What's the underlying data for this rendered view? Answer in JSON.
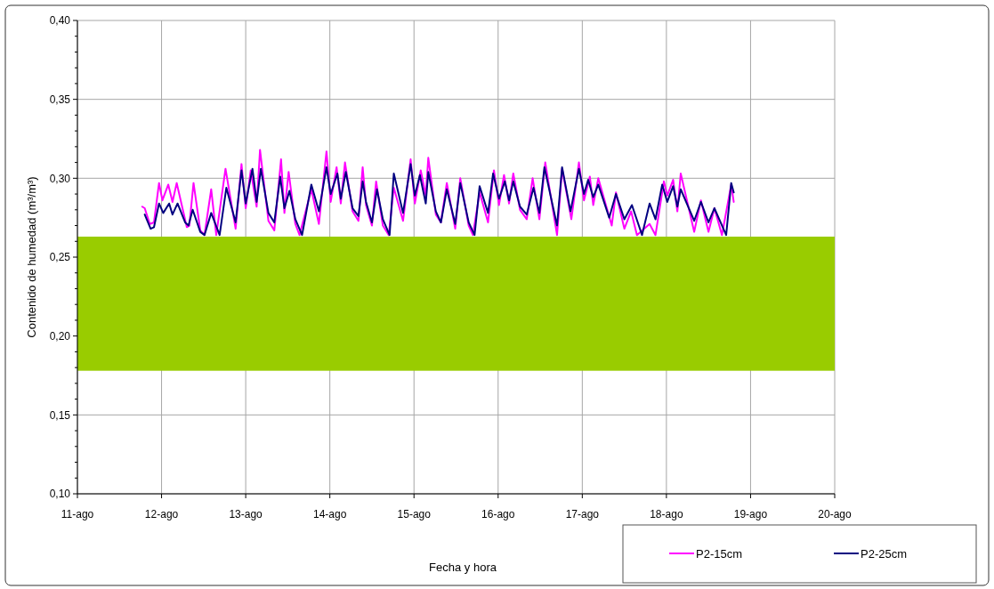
{
  "chart_data": {
    "type": "line",
    "xlabel": "Fecha y hora",
    "ylabel": "Contenido de humedad (m³/m³)",
    "xlim": [
      11,
      20
    ],
    "xticks": [
      {
        "value": 11,
        "label": "11-ago"
      },
      {
        "value": 12,
        "label": "12-ago"
      },
      {
        "value": 13,
        "label": "13-ago"
      },
      {
        "value": 14,
        "label": "14-ago"
      },
      {
        "value": 15,
        "label": "15-ago"
      },
      {
        "value": 16,
        "label": "16-ago"
      },
      {
        "value": 17,
        "label": "17-ago"
      },
      {
        "value": 18,
        "label": "18-ago"
      },
      {
        "value": 19,
        "label": "19-ago"
      },
      {
        "value": 20,
        "label": "20-ago"
      }
    ],
    "ylim": [
      0.1,
      0.4
    ],
    "yticks": [
      {
        "value": 0.1,
        "label": "0,10"
      },
      {
        "value": 0.11,
        "label": null
      },
      {
        "value": 0.12,
        "label": null
      },
      {
        "value": 0.13,
        "label": null
      },
      {
        "value": 0.14,
        "label": null
      },
      {
        "value": 0.15,
        "label": "0,15"
      },
      {
        "value": 0.16,
        "label": null
      },
      {
        "value": 0.17,
        "label": null
      },
      {
        "value": 0.18,
        "label": null
      },
      {
        "value": 0.19,
        "label": null
      },
      {
        "value": 0.2,
        "label": "0,20"
      },
      {
        "value": 0.21,
        "label": null
      },
      {
        "value": 0.22,
        "label": null
      },
      {
        "value": 0.23,
        "label": null
      },
      {
        "value": 0.24,
        "label": null
      },
      {
        "value": 0.25,
        "label": "0,25"
      },
      {
        "value": 0.26,
        "label": null
      },
      {
        "value": 0.27,
        "label": null
      },
      {
        "value": 0.28,
        "label": null
      },
      {
        "value": 0.29,
        "label": null
      },
      {
        "value": 0.3,
        "label": "0,30"
      },
      {
        "value": 0.31,
        "label": null
      },
      {
        "value": 0.32,
        "label": null
      },
      {
        "value": 0.33,
        "label": null
      },
      {
        "value": 0.34,
        "label": null
      },
      {
        "value": 0.35,
        "label": "0,35"
      },
      {
        "value": 0.36,
        "label": null
      },
      {
        "value": 0.37,
        "label": null
      },
      {
        "value": 0.38,
        "label": null
      },
      {
        "value": 0.39,
        "label": null
      },
      {
        "value": 0.4,
        "label": "0,40"
      }
    ],
    "grid": true,
    "legend": "bottom right",
    "line_style": "solid",
    "bands": [
      {
        "axis": "y",
        "from": 0.178,
        "to": 0.263,
        "color": "#99cc00"
      }
    ],
    "series": [
      {
        "name": "P2-15cm",
        "color": "#ff00ff",
        "x": [
          11.77,
          11.8,
          11.86,
          11.91,
          11.97,
          12.01,
          12.08,
          12.13,
          12.18,
          12.3,
          12.33,
          12.38,
          12.46,
          12.51,
          12.59,
          12.65,
          12.76,
          12.88,
          12.95,
          13.0,
          13.06,
          13.13,
          13.17,
          13.27,
          13.34,
          13.42,
          13.46,
          13.51,
          13.59,
          13.64,
          13.78,
          13.87,
          13.96,
          14.01,
          14.08,
          14.13,
          14.18,
          14.27,
          14.34,
          14.39,
          14.43,
          14.5,
          14.55,
          14.63,
          14.7,
          14.76,
          14.87,
          14.96,
          15.01,
          15.08,
          15.14,
          15.17,
          15.26,
          15.32,
          15.39,
          15.49,
          15.55,
          15.65,
          15.7,
          15.78,
          15.88,
          15.95,
          16.01,
          16.07,
          16.13,
          16.18,
          16.26,
          16.34,
          16.41,
          16.49,
          16.56,
          16.7,
          16.76,
          16.87,
          16.96,
          17.02,
          17.09,
          17.13,
          17.19,
          17.35,
          17.4,
          17.5,
          17.58,
          17.65,
          17.8,
          17.87,
          17.97,
          18.01,
          18.08,
          18.13,
          18.17,
          18.33,
          18.41,
          18.5,
          18.57,
          18.66,
          18.77,
          18.8
        ],
        "values": [
          0.282,
          0.281,
          0.271,
          0.272,
          0.297,
          0.286,
          0.296,
          0.285,
          0.297,
          0.269,
          0.27,
          0.297,
          0.267,
          0.264,
          0.293,
          0.264,
          0.306,
          0.268,
          0.309,
          0.281,
          0.305,
          0.282,
          0.318,
          0.273,
          0.267,
          0.312,
          0.278,
          0.304,
          0.271,
          0.264,
          0.293,
          0.271,
          0.317,
          0.285,
          0.307,
          0.284,
          0.31,
          0.279,
          0.273,
          0.307,
          0.283,
          0.27,
          0.298,
          0.27,
          0.264,
          0.294,
          0.273,
          0.312,
          0.284,
          0.305,
          0.289,
          0.313,
          0.277,
          0.272,
          0.297,
          0.268,
          0.3,
          0.27,
          0.264,
          0.291,
          0.272,
          0.305,
          0.283,
          0.302,
          0.284,
          0.303,
          0.28,
          0.274,
          0.3,
          0.274,
          0.31,
          0.264,
          0.306,
          0.274,
          0.31,
          0.286,
          0.301,
          0.283,
          0.3,
          0.27,
          0.291,
          0.268,
          0.279,
          0.264,
          0.271,
          0.264,
          0.298,
          0.289,
          0.299,
          0.279,
          0.303,
          0.266,
          0.286,
          0.266,
          0.281,
          0.264,
          0.296,
          0.285
        ]
      },
      {
        "name": "P2-25cm",
        "color": "#000080",
        "x": [
          11.8,
          11.87,
          11.91,
          11.97,
          12.02,
          12.09,
          12.13,
          12.19,
          12.28,
          12.32,
          12.37,
          12.46,
          12.51,
          12.59,
          12.69,
          12.77,
          12.88,
          12.95,
          13.0,
          13.08,
          13.13,
          13.18,
          13.27,
          13.34,
          13.41,
          13.46,
          13.52,
          13.59,
          13.67,
          13.78,
          13.87,
          13.96,
          14.01,
          14.09,
          14.13,
          14.19,
          14.27,
          14.34,
          14.39,
          14.43,
          14.5,
          14.56,
          14.63,
          14.71,
          14.76,
          14.87,
          14.96,
          15.01,
          15.07,
          15.14,
          15.17,
          15.26,
          15.32,
          15.39,
          15.49,
          15.55,
          15.65,
          15.72,
          15.78,
          15.88,
          15.94,
          16.01,
          16.08,
          16.13,
          16.18,
          16.26,
          16.34,
          16.42,
          16.49,
          16.55,
          16.7,
          16.76,
          16.86,
          16.96,
          17.02,
          17.07,
          17.13,
          17.19,
          17.32,
          17.4,
          17.5,
          17.59,
          17.71,
          17.8,
          17.87,
          17.95,
          18.01,
          18.08,
          18.13,
          18.17,
          18.33,
          18.41,
          18.5,
          18.57,
          18.71,
          18.77,
          18.8
        ],
        "values": [
          0.277,
          0.268,
          0.269,
          0.284,
          0.278,
          0.284,
          0.277,
          0.284,
          0.272,
          0.27,
          0.28,
          0.266,
          0.264,
          0.278,
          0.264,
          0.294,
          0.272,
          0.305,
          0.284,
          0.306,
          0.285,
          0.306,
          0.278,
          0.272,
          0.301,
          0.281,
          0.292,
          0.274,
          0.264,
          0.296,
          0.279,
          0.307,
          0.29,
          0.303,
          0.287,
          0.304,
          0.281,
          0.276,
          0.298,
          0.285,
          0.272,
          0.293,
          0.274,
          0.264,
          0.303,
          0.278,
          0.309,
          0.289,
          0.302,
          0.284,
          0.304,
          0.279,
          0.272,
          0.293,
          0.271,
          0.297,
          0.272,
          0.264,
          0.295,
          0.278,
          0.303,
          0.287,
          0.298,
          0.286,
          0.298,
          0.282,
          0.277,
          0.294,
          0.278,
          0.307,
          0.27,
          0.307,
          0.279,
          0.306,
          0.29,
          0.299,
          0.288,
          0.296,
          0.275,
          0.29,
          0.274,
          0.283,
          0.264,
          0.284,
          0.274,
          0.296,
          0.285,
          0.295,
          0.282,
          0.293,
          0.273,
          0.285,
          0.272,
          0.281,
          0.264,
          0.297,
          0.291
        ]
      }
    ]
  }
}
